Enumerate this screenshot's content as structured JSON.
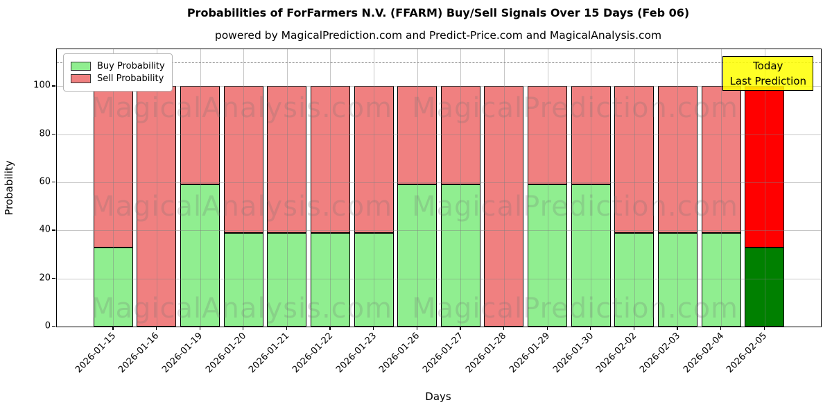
{
  "title": "Probabilities of ForFarmers N.V. (FFARM) Buy/Sell Signals Over 15 Days (Feb 06)",
  "subtitle": "powered by MagicalPrediction.com and Predict-Price.com and MagicalAnalysis.com",
  "legend": {
    "buy_label": "Buy Probability",
    "sell_label": "Sell Probability"
  },
  "annotation": {
    "line1": "Today",
    "line2": "Last Prediction",
    "bg_color": "#FFFF00"
  },
  "axes": {
    "x_label": "Days",
    "y_label": "Probability",
    "y_ticks": [
      0,
      20,
      40,
      60,
      80,
      100
    ]
  },
  "watermarks": {
    "left_text": "MagicalAnalysis.com",
    "right_text": "MagicalPrediction.com"
  },
  "colors": {
    "buy": "#90EE90",
    "sell": "#F08080",
    "today_buy": "#008000",
    "today_sell": "#FF0000",
    "grid": "#808080",
    "dashed_line": "#8a8a8a",
    "edge": "#000000"
  },
  "chart_data": {
    "type": "bar",
    "stacked": true,
    "title": "Probabilities of ForFarmers N.V. (FFARM) Buy/Sell Signals Over 15 Days (Feb 06)",
    "xlabel": "Days",
    "ylabel": "Probability",
    "ylim": [
      0,
      115.4
    ],
    "dashed_line_y": 110,
    "grid": true,
    "legend_position": "upper left",
    "today_index": 15,
    "categories": [
      "2026-01-15",
      "2026-01-16",
      "2026-01-19",
      "2026-01-20",
      "2026-01-21",
      "2026-01-22",
      "2026-01-23",
      "2026-01-26",
      "2026-01-27",
      "2026-01-28",
      "2026-01-29",
      "2026-01-30",
      "2026-02-02",
      "2026-02-03",
      "2026-02-04",
      "2026-02-05"
    ],
    "series": [
      {
        "name": "Buy Probability",
        "values": [
          33,
          0,
          59,
          39,
          39,
          39,
          39,
          59,
          59,
          0,
          59,
          59,
          39,
          39,
          39,
          33
        ]
      },
      {
        "name": "Sell Probability",
        "values": [
          67,
          100,
          41,
          61,
          61,
          61,
          61,
          41,
          41,
          100,
          41,
          41,
          61,
          61,
          61,
          67
        ]
      }
    ]
  }
}
